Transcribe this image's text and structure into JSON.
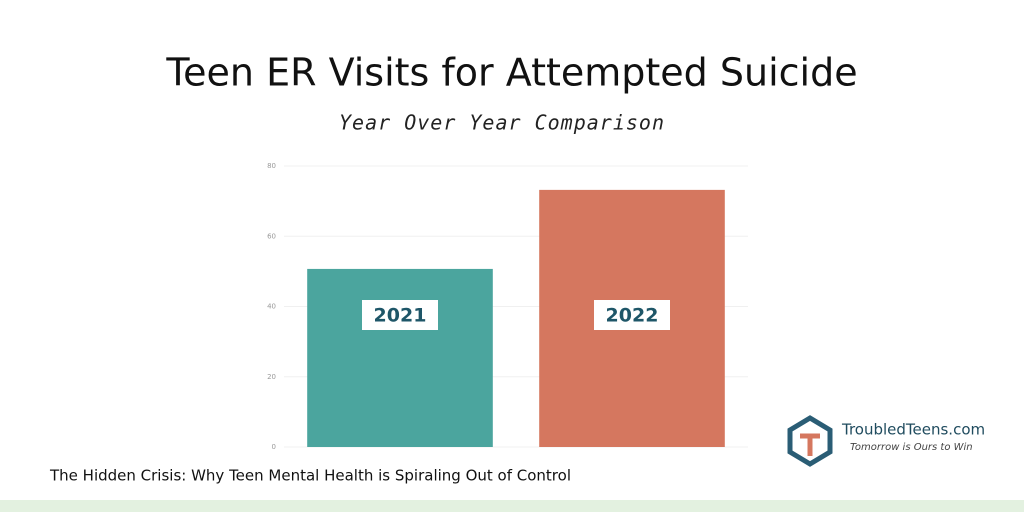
{
  "chart_data": {
    "type": "bar",
    "title": "Teen ER Visits for Attempted Suicide",
    "subtitle": "Year Over Year Comparison",
    "categories": [
      "2021",
      "2022"
    ],
    "values": [
      50.7,
      73.2
    ],
    "colors": [
      "#4ba59e",
      "#d5775f"
    ],
    "ylim": [
      0,
      80
    ],
    "yticks": [
      0,
      20,
      40,
      60,
      80
    ],
    "grid": true
  },
  "caption": "The Hidden Crisis: Why Teen Mental Health is Spiraling Out of Control",
  "logo": {
    "name": "TroubledTeens.com",
    "tagline": "Tomorrow is Ours to Win"
  }
}
